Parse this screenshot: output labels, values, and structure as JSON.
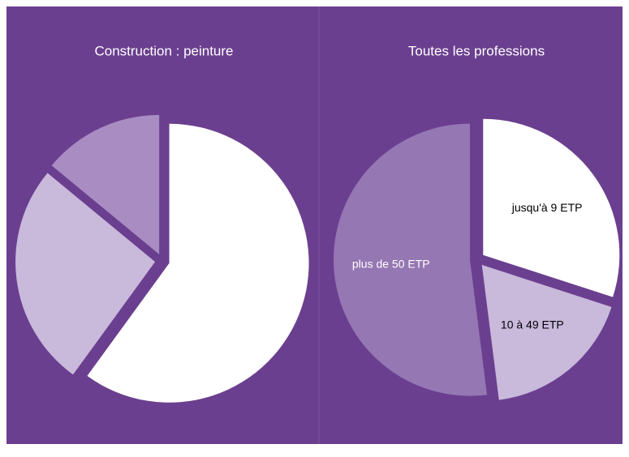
{
  "chart_data": [
    {
      "type": "pie",
      "title": "Construction : peinture",
      "values": [
        60,
        26,
        14
      ],
      "colors": [
        "#ffffff",
        "#c9b9db",
        "#a88cc2"
      ]
    },
    {
      "type": "pie",
      "title": "Toutes les professions",
      "categories": [
        "jusqu'à 9 ETP",
        "10 à 49 ETP",
        "plus de 50 ETP"
      ],
      "values": [
        30,
        18,
        52
      ],
      "colors": [
        "#ffffff",
        "#c9b9db",
        "#9577b3"
      ]
    }
  ]
}
